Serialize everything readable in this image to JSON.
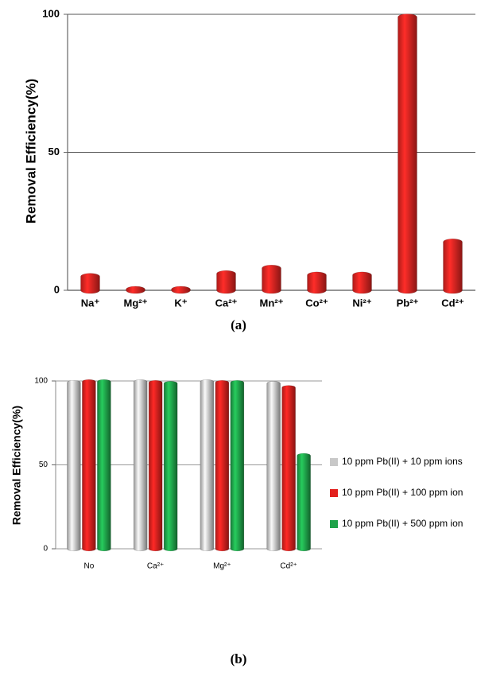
{
  "chart_data": [
    {
      "type": "bar",
      "y_label": "Removal Efficiency(%)",
      "caption": "(a)",
      "categories": [
        "Na⁺",
        "Mg²⁺",
        "K⁺",
        "Ca²⁺",
        "Mn²⁺",
        "Co²⁺",
        "Ni²⁺",
        "Pb²⁺",
        "Cd²⁺"
      ],
      "values": [
        5,
        0.3,
        0.3,
        6,
        8,
        5.5,
        5.5,
        99,
        17.5
      ],
      "color": "#e52421",
      "ylim": [
        0,
        100
      ],
      "yticks": [
        0,
        50,
        100
      ],
      "grid": true
    },
    {
      "type": "bar",
      "y_label": "Removal Efficiency(%)",
      "caption": "(b)",
      "categories": [
        "No",
        "Ca²⁺",
        "Mg²⁺",
        "Cd²⁺"
      ],
      "series": [
        {
          "name": "10 ppm Pb(II) + 10 ppm ions",
          "color": "#c8c8c8",
          "values": [
            99,
            99.5,
            99.5,
            98.5
          ]
        },
        {
          "name": "10 ppm Pb(II) + 100 ppm ion",
          "color": "#e3211e",
          "values": [
            99.5,
            99,
            99,
            96
          ]
        },
        {
          "name": "10 ppm Pb(II) + 500 ppm ion",
          "color": "#1fa34a",
          "values": [
            99.5,
            98.5,
            99,
            55.5
          ]
        }
      ],
      "ylim": [
        0,
        100
      ],
      "yticks": [
        0,
        50,
        100
      ],
      "grid": true,
      "legend": "right"
    }
  ]
}
